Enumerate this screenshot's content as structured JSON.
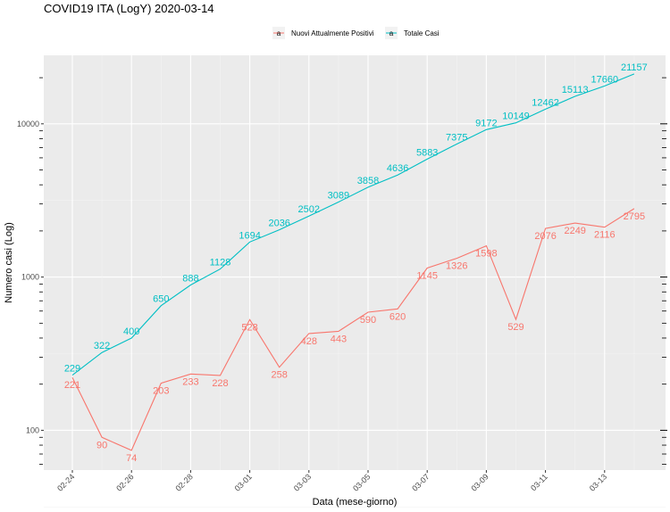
{
  "chart_data": {
    "type": "line",
    "title": "COVID19 ITA (LogY) 2020-03-14",
    "xlabel": "Data (mese-giorno)",
    "ylabel": "Numero casi (Log)",
    "y_scale": "log",
    "ylim": [
      55,
      28000
    ],
    "x_tick_labels": [
      "02-24",
      "02-26",
      "02-28",
      "03-01",
      "03-03",
      "03-05",
      "03-07",
      "03-09",
      "03-11",
      "03-13"
    ],
    "y_tick_labels": [
      "100",
      "1000",
      "10000"
    ],
    "y_tick_values": [
      100,
      1000,
      10000
    ],
    "legend_position": "top",
    "grid": true,
    "background_color": "#ebebeb",
    "x": [
      "02-24",
      "02-25",
      "02-26",
      "02-27",
      "02-28",
      "02-29",
      "03-01",
      "03-02",
      "03-03",
      "03-04",
      "03-05",
      "03-06",
      "03-07",
      "03-08",
      "03-09",
      "03-10",
      "03-11",
      "03-12",
      "03-13",
      "03-14"
    ],
    "series": [
      {
        "name": "Nuovi Attualmente Positivi",
        "color": "#f8766d",
        "values": [
          221,
          90,
          74,
          203,
          233,
          228,
          528,
          258,
          428,
          443,
          590,
          620,
          1145,
          1326,
          1598,
          529,
          2076,
          2249,
          2116,
          2795
        ]
      },
      {
        "name": "Totale Casi",
        "color": "#00bfc4",
        "values": [
          229,
          322,
          400,
          650,
          888,
          1128,
          1694,
          2036,
          2502,
          3089,
          3858,
          4636,
          5883,
          7375,
          9172,
          10149,
          12462,
          15113,
          17660,
          21157
        ]
      }
    ]
  }
}
